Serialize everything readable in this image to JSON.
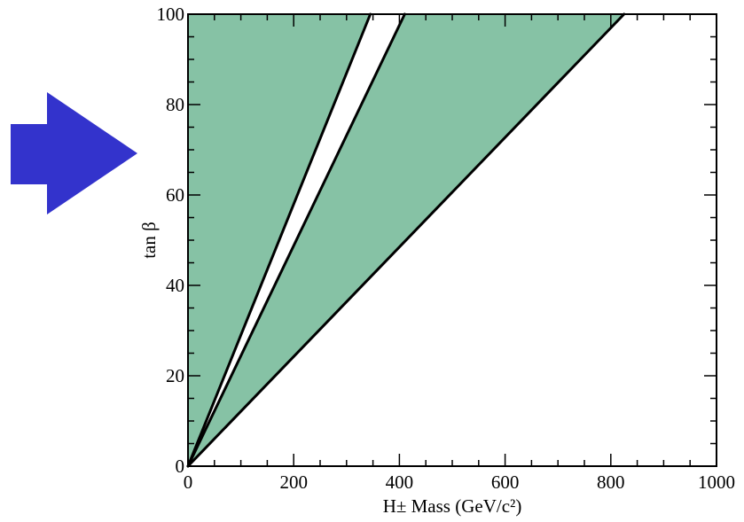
{
  "chart_data": {
    "type": "area",
    "xlabel": "H± Mass (GeV/c²)",
    "ylabel": "tan β",
    "xlim": [
      0,
      1000
    ],
    "ylim": [
      0,
      100
    ],
    "x_ticks": [
      "0",
      "200",
      "400",
      "600",
      "800",
      "1000"
    ],
    "y_ticks": [
      "0",
      "20",
      "40",
      "60",
      "80",
      "100"
    ],
    "grid": false,
    "fill_color": "#86c2a5",
    "line_color": "#000000",
    "arrow_color": "#3333cc",
    "regions": [
      {
        "boundary": [
          [
            0,
            0
          ],
          [
            0,
            100
          ],
          [
            345,
            100
          ],
          [
            0,
            0
          ]
        ]
      },
      {
        "boundary": [
          [
            0,
            0
          ],
          [
            410,
            100
          ],
          [
            825,
            100
          ],
          [
            0,
            0
          ]
        ]
      }
    ],
    "lines": [
      {
        "points": [
          [
            0,
            0
          ],
          [
            345,
            100
          ]
        ]
      },
      {
        "points": [
          [
            0,
            0
          ],
          [
            410,
            100
          ]
        ]
      },
      {
        "points": [
          [
            0,
            0
          ],
          [
            825,
            100
          ]
        ]
      }
    ]
  }
}
